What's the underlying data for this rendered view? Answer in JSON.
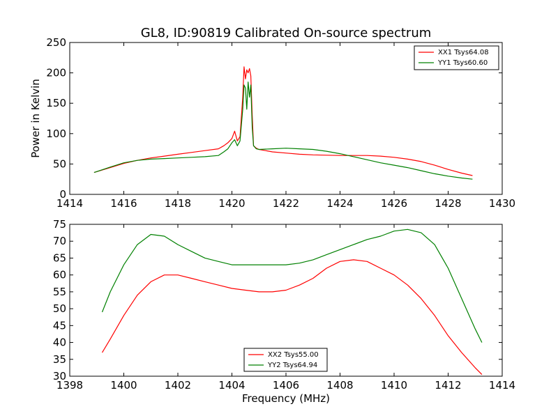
{
  "chart_data": [
    {
      "type": "line",
      "title": "GL8, ID:90819 Calibrated On-source spectrum",
      "xlabel": "",
      "ylabel": "Power in Kelvin",
      "xlim": [
        1414,
        1430
      ],
      "ylim": [
        0,
        250
      ],
      "xticks": [
        1414,
        1416,
        1418,
        1420,
        1422,
        1424,
        1426,
        1428,
        1430
      ],
      "yticks": [
        0,
        50,
        100,
        150,
        200,
        250
      ],
      "legend_position": "top-right",
      "grid": false,
      "series": [
        {
          "name": "XX1 Tsys64.08",
          "color": "#ff0000",
          "x": [
            1414.9,
            1415.5,
            1416.0,
            1416.5,
            1417.0,
            1417.5,
            1418.0,
            1418.5,
            1419.0,
            1419.5,
            1419.7,
            1419.85,
            1420.0,
            1420.1,
            1420.2,
            1420.3,
            1420.4,
            1420.45,
            1420.5,
            1420.55,
            1420.6,
            1420.65,
            1420.7,
            1420.75,
            1420.8,
            1420.9,
            1421.0,
            1421.5,
            1422.0,
            1422.5,
            1423.0,
            1424.0,
            1424.5,
            1425.0,
            1425.5,
            1426.0,
            1426.5,
            1427.0,
            1427.5,
            1428.0,
            1428.5,
            1428.9
          ],
          "y": [
            36,
            44,
            51,
            56,
            60,
            63,
            66,
            69,
            72,
            75,
            80,
            85,
            92,
            104,
            88,
            95,
            160,
            210,
            190,
            205,
            200,
            207,
            195,
            130,
            80,
            76,
            74,
            70,
            68,
            66,
            65,
            64,
            64,
            64,
            63,
            61,
            58,
            54,
            48,
            41,
            35,
            31
          ]
        },
        {
          "name": "YY1 Tsys60.60",
          "color": "#008000",
          "x": [
            1414.9,
            1415.5,
            1416.0,
            1416.5,
            1417.0,
            1417.5,
            1418.0,
            1418.5,
            1419.0,
            1419.5,
            1419.7,
            1419.85,
            1420.0,
            1420.1,
            1420.2,
            1420.3,
            1420.4,
            1420.45,
            1420.5,
            1420.55,
            1420.6,
            1420.65,
            1420.7,
            1420.75,
            1420.8,
            1420.9,
            1421.0,
            1421.5,
            1422.0,
            1422.5,
            1423.0,
            1423.5,
            1424.0,
            1424.5,
            1425.0,
            1425.5,
            1426.0,
            1426.5,
            1427.0,
            1427.5,
            1428.0,
            1428.5,
            1428.9
          ],
          "y": [
            36,
            45,
            52,
            56,
            58,
            59,
            60,
            61,
            62,
            64,
            70,
            75,
            85,
            90,
            80,
            88,
            140,
            180,
            175,
            140,
            185,
            160,
            180,
            110,
            80,
            75,
            74,
            75,
            76,
            75,
            74,
            71,
            67,
            62,
            57,
            52,
            48,
            44,
            39,
            34,
            30,
            27,
            25
          ]
        }
      ]
    },
    {
      "type": "line",
      "title": "",
      "xlabel": "Frequency (MHz)",
      "ylabel": "",
      "xlim": [
        1398,
        1414
      ],
      "ylim": [
        30,
        75
      ],
      "xticks": [
        1398,
        1400,
        1402,
        1404,
        1406,
        1408,
        1410,
        1412,
        1414
      ],
      "yticks": [
        30,
        35,
        40,
        45,
        50,
        55,
        60,
        65,
        70,
        75
      ],
      "legend_position": "bottom-center",
      "grid": false,
      "series": [
        {
          "name": "XX2 Tsys55.00",
          "color": "#ff0000",
          "x": [
            1399.2,
            1399.5,
            1400.0,
            1400.5,
            1401.0,
            1401.5,
            1402.0,
            1402.5,
            1403.0,
            1403.5,
            1404.0,
            1404.5,
            1405.0,
            1405.5,
            1406.0,
            1406.5,
            1407.0,
            1407.5,
            1408.0,
            1408.5,
            1409.0,
            1409.5,
            1410.0,
            1410.5,
            1411.0,
            1411.5,
            1412.0,
            1412.5,
            1413.0,
            1413.25
          ],
          "y": [
            37,
            41,
            48,
            54,
            58,
            60,
            60,
            59,
            58,
            57,
            56,
            55.5,
            55,
            55,
            55.5,
            57,
            59,
            62,
            64,
            64.5,
            64,
            62,
            60,
            57,
            53,
            48,
            42,
            37,
            32.5,
            30.5
          ]
        },
        {
          "name": "YY2 Tsys64.94",
          "color": "#008000",
          "x": [
            1399.2,
            1399.5,
            1400.0,
            1400.5,
            1401.0,
            1401.5,
            1402.0,
            1402.5,
            1403.0,
            1403.5,
            1404.0,
            1404.5,
            1405.0,
            1405.5,
            1406.0,
            1406.5,
            1407.0,
            1407.5,
            1408.0,
            1408.5,
            1409.0,
            1409.5,
            1410.0,
            1410.5,
            1411.0,
            1411.5,
            1412.0,
            1412.5,
            1413.0,
            1413.25
          ],
          "y": [
            49,
            55,
            63,
            69,
            72,
            71.5,
            69,
            67,
            65,
            64,
            63,
            63,
            63,
            63,
            63,
            63.5,
            64.5,
            66,
            67.5,
            69,
            70.5,
            71.5,
            73,
            73.5,
            72.5,
            69,
            62,
            53,
            44,
            40
          ]
        }
      ]
    }
  ]
}
